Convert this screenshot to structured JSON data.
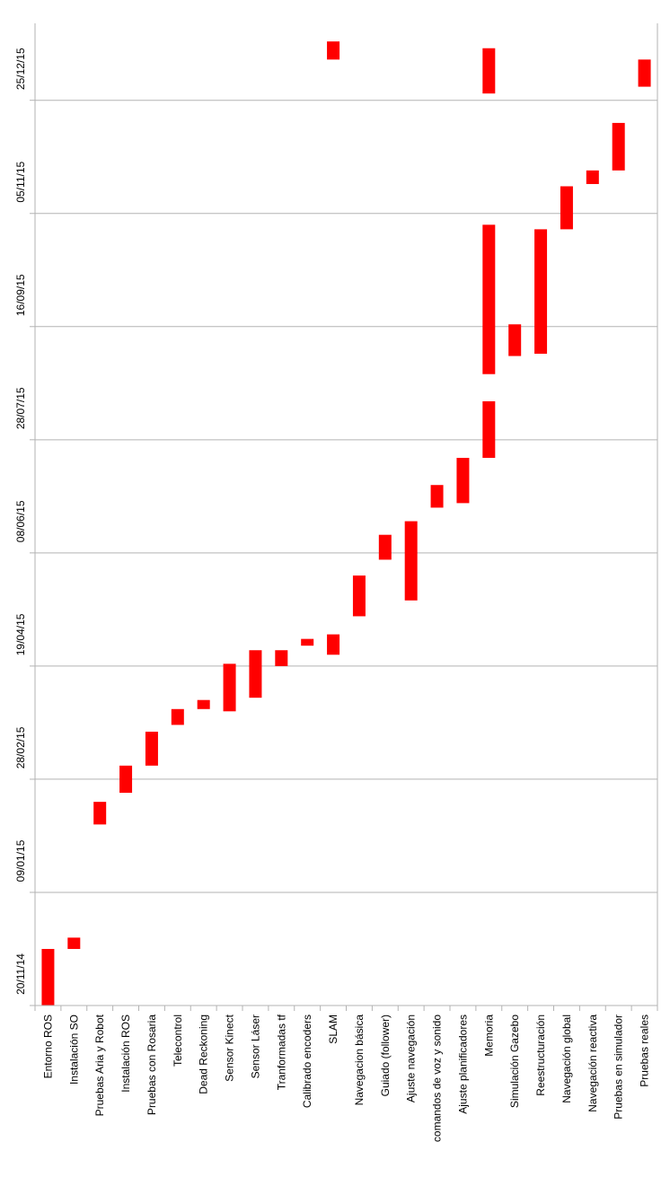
{
  "chart_data": {
    "type": "bar",
    "subtype": "floating-range",
    "orientation": "vertical",
    "colors": {
      "bar": "#ff0000",
      "grid": "#b3b3b3",
      "axis": "#b3b3b3"
    },
    "grid": true,
    "legend": "none",
    "y_ticks": [
      "20/11/14",
      "09/01/15",
      "28/02/15",
      "19/04/15",
      "08/06/15",
      "28/07/15",
      "16/09/15",
      "05/11/15",
      "25/12/15"
    ],
    "ylim": [
      "2014-11-20",
      "2016-01-28"
    ],
    "categories": [
      "Entorno ROS",
      "Instalación SO",
      "Pruebas Aria y Robot",
      "Instalación ROS",
      "Pruebas con Rosaria",
      "Telecontrol",
      "Dead Reckoning",
      "Sensor Kinect",
      "Sensor Láser",
      "Tranformadas tf",
      "Calibrado encoders",
      "SLAM",
      "Navegacion básica",
      "Guiado (follower)",
      "Ajuste navegación",
      "comandos de voz y sonido",
      "Ajuste planificadores",
      "Memoria",
      "Simulación Gazebo",
      "Reestructuración",
      "Navegación global",
      "Navegación reactiva",
      "Pruebas en simulador",
      "Pruebas reales"
    ],
    "ranges": [
      [
        {
          "start": "2014-11-20",
          "end": "2014-12-15"
        }
      ],
      [
        {
          "start": "2014-12-15",
          "end": "2014-12-20"
        }
      ],
      [
        {
          "start": "2015-02-08",
          "end": "2015-02-18"
        }
      ],
      [
        {
          "start": "2015-02-22",
          "end": "2015-03-06"
        }
      ],
      [
        {
          "start": "2015-03-06",
          "end": "2015-03-21"
        }
      ],
      [
        {
          "start": "2015-03-24",
          "end": "2015-03-31"
        }
      ],
      [
        {
          "start": "2015-03-31",
          "end": "2015-04-04"
        }
      ],
      [
        {
          "start": "2015-03-30",
          "end": "2015-04-20"
        }
      ],
      [
        {
          "start": "2015-04-05",
          "end": "2015-04-26"
        }
      ],
      [
        {
          "start": "2015-04-19",
          "end": "2015-04-26"
        }
      ],
      [
        {
          "start": "2015-04-28",
          "end": "2015-05-01"
        }
      ],
      [
        {
          "start": "2015-04-24",
          "end": "2015-05-03"
        },
        {
          "start": "2016-01-12",
          "end": "2016-01-20"
        }
      ],
      [
        {
          "start": "2015-05-11",
          "end": "2015-05-29"
        }
      ],
      [
        {
          "start": "2015-06-05",
          "end": "2015-06-16"
        }
      ],
      [
        {
          "start": "2015-05-18",
          "end": "2015-06-22"
        }
      ],
      [
        {
          "start": "2015-06-28",
          "end": "2015-07-08"
        }
      ],
      [
        {
          "start": "2015-06-30",
          "end": "2015-07-20"
        }
      ],
      [
        {
          "start": "2015-07-20",
          "end": "2015-08-14"
        },
        {
          "start": "2015-08-26",
          "end": "2015-10-31"
        },
        {
          "start": "2015-12-28",
          "end": "2016-01-17"
        }
      ],
      [
        {
          "start": "2015-09-03",
          "end": "2015-09-17"
        }
      ],
      [
        {
          "start": "2015-09-04",
          "end": "2015-10-29"
        }
      ],
      [
        {
          "start": "2015-10-29",
          "end": "2015-11-17"
        }
      ],
      [
        {
          "start": "2015-11-18",
          "end": "2015-11-24"
        }
      ],
      [
        {
          "start": "2015-11-24",
          "end": "2015-12-15"
        }
      ],
      [
        {
          "start": "2015-12-31",
          "end": "2016-01-12"
        }
      ]
    ]
  }
}
